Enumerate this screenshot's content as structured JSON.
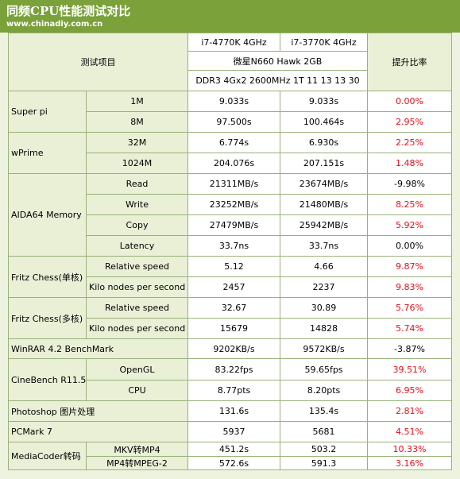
{
  "header": {
    "title": "同频CPU性能测试对比",
    "site": "www.chinadiy.com.cn"
  },
  "table": {
    "columns": {
      "item": "测试项目",
      "cpu1": "i7-4770K 4GHz",
      "cpu2": "i7-3770K 4GHz",
      "board": "微星N660 Hawk 2GB",
      "memory": "DDR3 4Gx2 2600MHz 1T 11 13 13 30",
      "ratio": "提升比率"
    },
    "groups": [
      {
        "name": "Super pi",
        "rows": [
          {
            "sub": "1M",
            "a": "9.033s",
            "b": "9.033s",
            "ratio": "0.00%",
            "color": "#e0101a"
          },
          {
            "sub": "8M",
            "a": "97.500s",
            "b": "100.464s",
            "ratio": "2.95%",
            "color": "#e0101a"
          }
        ]
      },
      {
        "name": "wPrime",
        "rows": [
          {
            "sub": "32M",
            "a": "6.774s",
            "b": "6.930s",
            "ratio": "2.25%",
            "color": "#e0101a"
          },
          {
            "sub": "1024M",
            "a": "204.076s",
            "b": "207.151s",
            "ratio": "1.48%",
            "color": "#e0101a"
          }
        ]
      },
      {
        "name": "AIDA64 Memory",
        "rows": [
          {
            "sub": "Read",
            "a": "21311MB/s",
            "b": "23674MB/s",
            "ratio": "-9.98%",
            "color": "#000000"
          },
          {
            "sub": "Write",
            "a": "23252MB/s",
            "b": "21480MB/s",
            "ratio": "8.25%",
            "color": "#e0101a"
          },
          {
            "sub": "Copy",
            "a": "27479MB/s",
            "b": "25942MB/s",
            "ratio": "5.92%",
            "color": "#e0101a"
          },
          {
            "sub": "Latency",
            "a": "33.7ns",
            "b": "33.7ns",
            "ratio": "0.00%",
            "color": "#000000"
          }
        ]
      },
      {
        "name": "Fritz Chess(单核)",
        "rows": [
          {
            "sub": "Relative speed",
            "a": "5.12",
            "b": "4.66",
            "ratio": "9.87%",
            "color": "#e0101a"
          },
          {
            "sub": "Kilo nodes per second",
            "a": "2457",
            "b": "2237",
            "ratio": "9.83%",
            "color": "#e0101a"
          }
        ]
      },
      {
        "name": "Fritz Chess(多核)",
        "rows": [
          {
            "sub": "Relative speed",
            "a": "32.67",
            "b": "30.89",
            "ratio": "5.76%",
            "color": "#e0101a"
          },
          {
            "sub": "Kilo nodes per second",
            "a": "15679",
            "b": "14828",
            "ratio": "5.74%",
            "color": "#e0101a"
          }
        ]
      },
      {
        "name": "WinRAR 4.2 BenchMark",
        "rows": [
          {
            "a": "9202KB/s",
            "b": "9572KB/s",
            "ratio": "-3.87%",
            "color": "#000000"
          }
        ]
      },
      {
        "name": "CineBench R11.5",
        "rows": [
          {
            "sub": "OpenGL",
            "a": "83.22fps",
            "b": "59.65fps",
            "ratio": "39.51%",
            "color": "#e0101a"
          },
          {
            "sub": "CPU",
            "a": "8.77pts",
            "b": "8.20pts",
            "ratio": "6.95%",
            "color": "#e0101a"
          }
        ]
      },
      {
        "name": "Photoshop 图片处理",
        "rows": [
          {
            "a": "131.6s",
            "b": "135.4s",
            "ratio": "2.81%",
            "color": "#e0101a"
          }
        ]
      },
      {
        "name": "PCMark 7",
        "rows": [
          {
            "a": "5937",
            "b": "5681",
            "ratio": "4.51%",
            "color": "#e0101a"
          }
        ]
      },
      {
        "name": "MediaCoder转码",
        "rows": [
          {
            "sub": "MKV转MP4",
            "a": "451.2s",
            "b": "503.2",
            "ratio": "10.33%",
            "color": "#e0101a"
          },
          {
            "sub": "MP4转MPEG-2",
            "a": "572.6s",
            "b": "591.3",
            "ratio": "3.16%",
            "color": "#e0101a"
          }
        ]
      }
    ]
  }
}
